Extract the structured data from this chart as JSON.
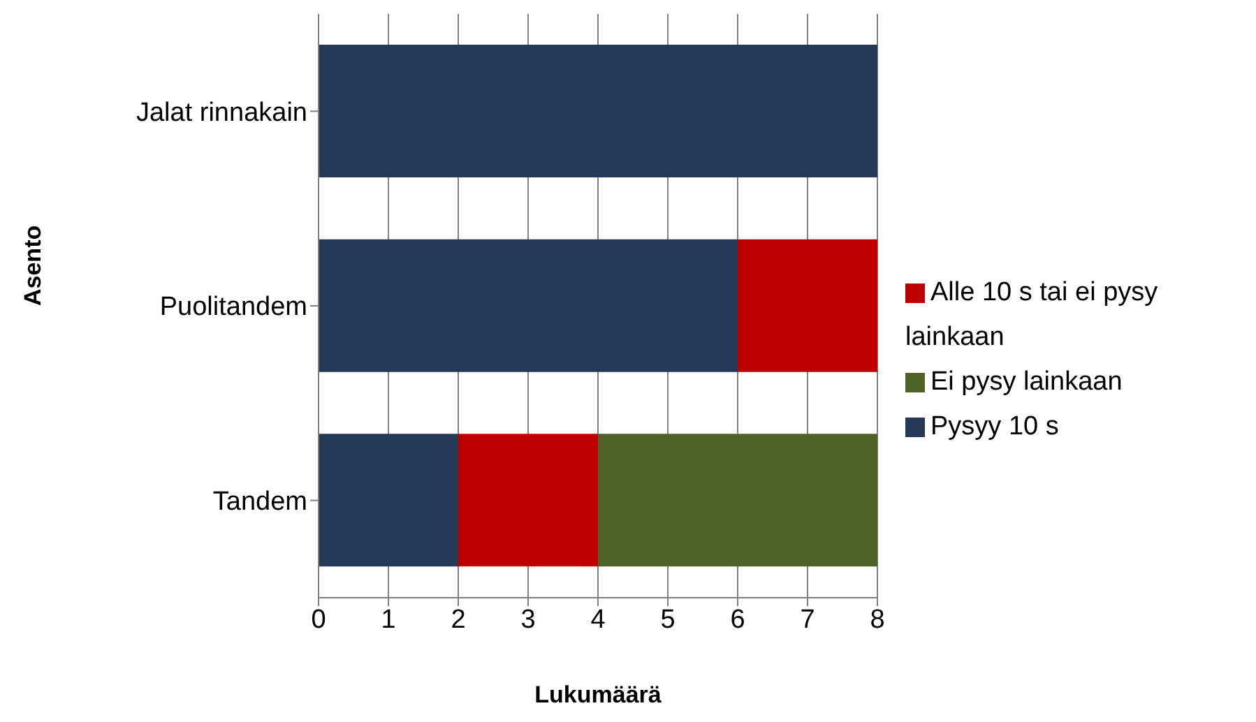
{
  "chart_data": {
    "type": "bar",
    "orientation": "horizontal",
    "stacked": true,
    "xlabel": "Lukumäärä",
    "ylabel": "Asento",
    "categories": [
      "Jalat rinnakain",
      "Puolitandem",
      "Tandem"
    ],
    "series": [
      {
        "name": "Pysyy 10 s",
        "color": "#243858",
        "values": [
          8,
          6,
          2
        ]
      },
      {
        "name": "Alle 10 s tai ei pysy lainkaan",
        "color": "#c00000",
        "values": [
          0,
          2,
          2
        ]
      },
      {
        "name": "Ei pysy lainkaan",
        "color": "#4f6228",
        "values": [
          0,
          0,
          4
        ]
      }
    ],
    "xlim": [
      0,
      8
    ],
    "xticks": [
      0,
      1,
      2,
      3,
      4,
      5,
      6,
      7,
      8
    ],
    "grid": "x",
    "legend": "right"
  }
}
